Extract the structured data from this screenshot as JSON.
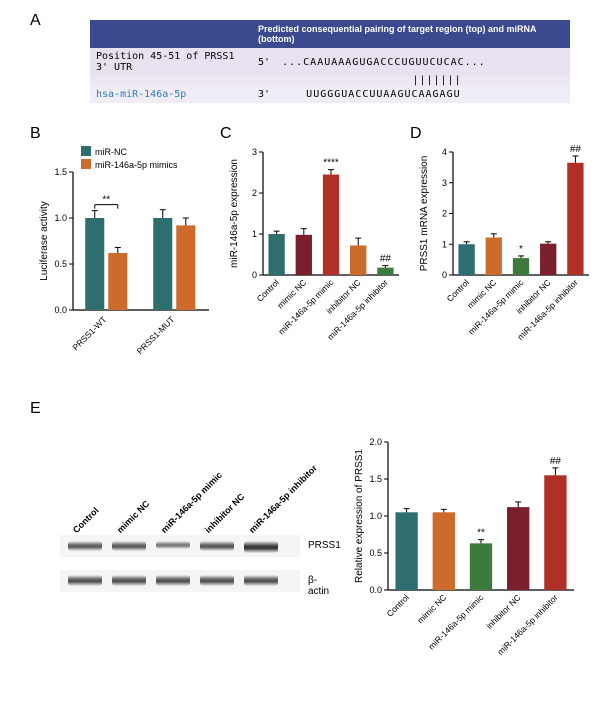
{
  "panel_a": {
    "header_left": "",
    "header_right": "Predicted consequential pairing of target region (top) and miRNA (bottom)",
    "row1_label": "Position 45-51 of PRSS1 3' UTR",
    "row1_prefix": "5'",
    "row1_seq": "...CAAUAAAGUGACCCUGUUCUCAC...",
    "row2_label": "hsa-miR-146a-5p",
    "row2_label_color": "#2b7bb9",
    "row2_prefix": "3'",
    "row2_seq": "UUGGGUACCUUAAGUCAAGAGU",
    "pairing_marks": "                      ||||||| "
  },
  "colors": {
    "teal": "#2e6e6e",
    "orange": "#cc6b2c",
    "green": "#3d7a3d",
    "maroon": "#7a1f2b",
    "red": "#b03028",
    "grey": "#888"
  },
  "panel_b": {
    "y_title": "Luciferase activity",
    "ylim": [
      0,
      1.5
    ],
    "ytick_step": 0.5,
    "groups": [
      "PRSS1-WT",
      "PRSS1-MUT"
    ],
    "series": [
      "miR-NC",
      "miR-146a-5p mimics"
    ],
    "series_colors": [
      "#2e6e6e",
      "#cc6b2c"
    ],
    "values": [
      [
        1.0,
        0.62
      ],
      [
        1.0,
        0.92
      ]
    ],
    "errors": [
      [
        0.08,
        0.06
      ],
      [
        0.09,
        0.08
      ]
    ],
    "sig": [
      {
        "group": 0,
        "text": "**"
      }
    ]
  },
  "panel_c": {
    "y_title": "miR-146a-5p expression",
    "ylim": [
      0,
      3
    ],
    "ytick_step": 1,
    "categories": [
      "Control",
      "mimic NC",
      "miR-146a-5p mimic",
      "inhibitor NC",
      "miR-146a-5p inhibitor"
    ],
    "colors": [
      "#2e6e6e",
      "#7a1f2b",
      "#b03028",
      "#cc6b2c",
      "#3d7a3d"
    ],
    "values": [
      1.0,
      0.98,
      2.45,
      0.72,
      0.18
    ],
    "errors": [
      0.07,
      0.15,
      0.12,
      0.18,
      0.05
    ],
    "sig": [
      {
        "i": 2,
        "text": "****"
      },
      {
        "i": 4,
        "text": "##"
      }
    ]
  },
  "panel_d": {
    "y_title": "PRSS1 mRNA expression",
    "ylim": [
      0,
      4
    ],
    "ytick_step": 1,
    "categories": [
      "Control",
      "mimic NC",
      "miR-146a-5p mimic",
      "inhibitor NC",
      "miR-146a-5p inhibitor"
    ],
    "colors": [
      "#2e6e6e",
      "#cc6b2c",
      "#3d7a3d",
      "#7a1f2b",
      "#b03028"
    ],
    "values": [
      1.0,
      1.22,
      0.55,
      1.02,
      3.65
    ],
    "errors": [
      0.08,
      0.12,
      0.07,
      0.06,
      0.22
    ],
    "sig": [
      {
        "i": 2,
        "text": "*"
      },
      {
        "i": 4,
        "text": "##"
      }
    ]
  },
  "panel_e_blot": {
    "lanes": [
      "Control",
      "mimic NC",
      "miR-146a-5p mimic",
      "inhibitor NC",
      "miR-146a-5p inhibitor"
    ],
    "proteins": [
      "PRSS1",
      "β-actin"
    ],
    "intensities": {
      "PRSS1": [
        1.0,
        1.0,
        0.6,
        1.05,
        1.5
      ],
      "b_actin": [
        1.0,
        1.0,
        1.0,
        1.0,
        1.0
      ]
    }
  },
  "panel_e_chart": {
    "y_title": "Relative expression of PRSS1",
    "ylim": [
      0,
      2.0
    ],
    "ytick_step": 0.5,
    "categories": [
      "Control",
      "mimic NC",
      "miR-146a-5p mimic",
      "inhibitor NC",
      "miR-146a-5p inhibitor"
    ],
    "colors": [
      "#2e6e6e",
      "#cc6b2c",
      "#3d7a3d",
      "#7a1f2b",
      "#b03028"
    ],
    "values": [
      1.05,
      1.05,
      0.63,
      1.12,
      1.55
    ],
    "errors": [
      0.05,
      0.04,
      0.05,
      0.07,
      0.1
    ],
    "sig": [
      {
        "i": 2,
        "text": "**"
      },
      {
        "i": 4,
        "text": "##"
      }
    ]
  },
  "labels": {
    "A": "A",
    "B": "B",
    "C": "C",
    "D": "D",
    "E": "E"
  }
}
